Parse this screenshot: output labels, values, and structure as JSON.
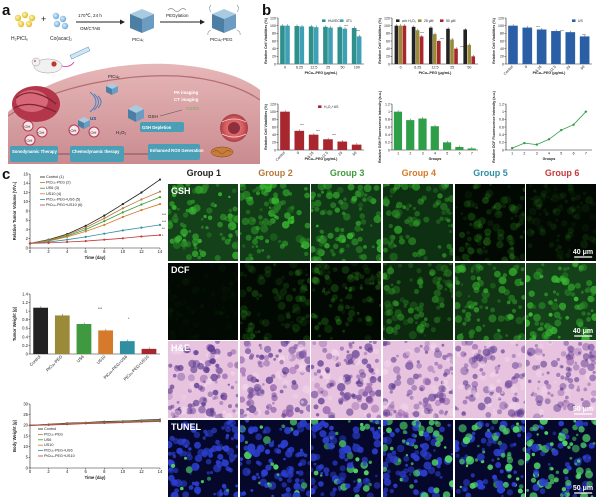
{
  "panels": {
    "a": "a",
    "b": "b",
    "c": "c"
  },
  "schematic": {
    "reagent1": "H₂PtCl₆",
    "reagent2": "Co(acac)₂",
    "condition1": "170℃, 24 h",
    "condition2": "OM/CTAB",
    "product1": "PtCuₓ",
    "pegylation": "PEGylation",
    "product2": "PtCuₓ-PEG",
    "particle_label": "PtCuₓ",
    "us_label": "US",
    "h2o2": "H₂O₂",
    "gsh": "GSH",
    "gssg": "GSSG",
    "oh": "·OH",
    "pa_imaging": "PA imaging",
    "ct_imaging": "CT imaging",
    "gsh_depletion": "GSH Depletion",
    "sono": "Sonodynamic Therapy",
    "chemo": "Chemodynamic therapy",
    "ros": "Enhanced ROS Generation",
    "icon_colors": {
      "tissue": "#d8a6a8",
      "tumor": "#c46a73",
      "box_teal": "#5bb9c0",
      "badge_purple": "#7b5ea8"
    }
  },
  "charts_b": [
    {
      "type": "bar",
      "ylabel": "Relative Cell Viabilities (%)",
      "xlabel": "PtCuₓ-PEG (μg/mL)",
      "categories": [
        "0",
        "6.25",
        "12.5",
        "25",
        "50",
        "100"
      ],
      "legend": [
        "HUVEC",
        "4T1"
      ],
      "series": [
        {
          "name": "HUVEC",
          "color": "#2f8f8a",
          "values": [
            100,
            99,
            98,
            97,
            96,
            94
          ]
        },
        {
          "name": "4T1",
          "color": "#3ea0b5",
          "values": [
            100,
            98,
            96,
            95,
            92,
            72
          ]
        }
      ],
      "ylim": [
        0,
        120
      ],
      "yticks": [
        0,
        20,
        40,
        60,
        80,
        100,
        120
      ]
    },
    {
      "type": "bar",
      "ylabel": "Relative Cell Viabilities (%)",
      "xlabel": "PtCuₓ-PEG (μg/mL)",
      "categories": [
        "0",
        "6.25",
        "12.5",
        "25",
        "50"
      ],
      "legend": [
        "w/o H₂O₂",
        "25 μM",
        "50 μM"
      ],
      "series": [
        {
          "name": "w/o H₂O₂",
          "color": "#222222",
          "values": [
            100,
            97,
            95,
            92,
            90
          ]
        },
        {
          "name": "25 μM",
          "color": "#9a8a3a",
          "values": [
            100,
            88,
            78,
            64,
            50
          ]
        },
        {
          "name": "50 μM",
          "color": "#a8262e",
          "values": [
            100,
            72,
            60,
            40,
            20
          ]
        }
      ],
      "ylim": [
        0,
        120
      ],
      "yticks": [
        0,
        20,
        40,
        60,
        80,
        100,
        120
      ]
    },
    {
      "type": "bar",
      "ylabel": "Relative Cell Viabilities (%)",
      "xlabel": "PtCuₓ-PEG (μg/mL)",
      "categories": [
        "Control",
        "0",
        "6.25",
        "12.5",
        "25",
        "50"
      ],
      "legend": [
        "US"
      ],
      "series": [
        {
          "name": "US",
          "color": "#2a5fa6",
          "values": [
            100,
            95,
            90,
            86,
            83,
            72
          ]
        }
      ],
      "ylim": [
        0,
        120
      ],
      "yticks": [
        0,
        20,
        40,
        60,
        80,
        100,
        120
      ]
    },
    {
      "type": "bar",
      "ylabel": "Relative Cell Viabilities (%)",
      "xlabel": "PtCuₓ-PEG (μg/mL)",
      "categories": [
        "Control",
        "0",
        "6.25",
        "12.5",
        "25",
        "50"
      ],
      "legend": [
        "H₂O₂+US"
      ],
      "series": [
        {
          "name": "H₂O₂+US",
          "color": "#a8262e",
          "values": [
            100,
            50,
            40,
            28,
            22,
            14
          ]
        }
      ],
      "ylim": [
        0,
        120
      ],
      "yticks": [
        0,
        20,
        40,
        60,
        80,
        100,
        120
      ]
    },
    {
      "type": "bar",
      "ylabel": "Relative GSH Fluorescence Intensity (a.u.)",
      "xlabel": "Groups",
      "categories": [
        "1",
        "2",
        "3",
        "4",
        "5",
        "6",
        "7"
      ],
      "series": [
        {
          "name": "",
          "color": "#2f9e48",
          "values": [
            1.0,
            0.78,
            0.82,
            0.62,
            0.2,
            0.08,
            0.04
          ]
        }
      ],
      "ylim": [
        0,
        1.2
      ],
      "yticks": [
        0.0,
        0.2,
        0.4,
        0.6,
        0.8,
        1.0,
        1.2
      ]
    },
    {
      "type": "line",
      "ylabel": "Relative DCF Fluorescence Intensity (a.u.)",
      "xlabel": "Groups",
      "categories": [
        "1",
        "2",
        "3",
        "4",
        "5",
        "6",
        "7"
      ],
      "series": [
        {
          "name": "",
          "color": "#2f9e48",
          "values": [
            0.05,
            0.18,
            0.14,
            0.28,
            0.52,
            0.66,
            1.0
          ]
        }
      ],
      "ylim": [
        0,
        1.2
      ],
      "yticks": [
        0.0,
        0.2,
        0.4,
        0.6,
        0.8,
        1.0,
        1.2
      ]
    }
  ],
  "charts_c": [
    {
      "type": "line",
      "ylabel": "Relative Tumor Volume (V/V₀)",
      "xlabel": "Time (day)",
      "x": [
        0,
        2,
        4,
        6,
        8,
        10,
        12,
        14
      ],
      "xticks": [
        0,
        2,
        4,
        6,
        8,
        10,
        12,
        14
      ],
      "ylim": [
        0,
        16
      ],
      "yticks": [
        0,
        2,
        4,
        6,
        8,
        10,
        12,
        14,
        16
      ],
      "legend_title": "",
      "series": [
        {
          "name": "Control (1)",
          "color": "#222222",
          "values": [
            1,
            1.8,
            3,
            4.8,
            7,
            9.5,
            12,
            14.8
          ]
        },
        {
          "name": "PtCuₓ-PEG (2)",
          "color": "#b5793a",
          "values": [
            1,
            1.7,
            2.8,
            4.4,
            6.4,
            8.6,
            10.5,
            12.2
          ]
        },
        {
          "name": "US6 (3)",
          "color": "#3f9a3f",
          "values": [
            1,
            1.6,
            2.6,
            4,
            5.8,
            7.7,
            9.4,
            11
          ]
        },
        {
          "name": "US10 (4)",
          "color": "#d47a2a",
          "values": [
            1,
            1.5,
            2.4,
            3.6,
            5,
            6.7,
            8.2,
            9.5
          ]
        },
        {
          "name": "PtCuₓ-PEG+US6 (5)",
          "color": "#2f8fa0",
          "values": [
            1,
            1.3,
            1.8,
            2.4,
            3.1,
            3.8,
            4.4,
            5
          ]
        },
        {
          "name": "PtCuₓ-PEG+US10 (6)",
          "color": "#c33a3a",
          "values": [
            1,
            1.1,
            1.3,
            1.5,
            1.8,
            2.1,
            2.5,
            2.8
          ]
        }
      ]
    },
    {
      "type": "bar",
      "ylabel": "Tumor Weight (g)",
      "categories": [
        "Control",
        "PtCuₓ-PEG",
        "US6",
        "US10",
        "PtCuₓ-PEG+US6",
        "PtCuₓ-PEG+US10"
      ],
      "ylim": [
        0,
        1.4
      ],
      "yticks": [
        0.0,
        0.2,
        0.4,
        0.6,
        0.8,
        1.0,
        1.2,
        1.4
      ],
      "series": [
        {
          "name": "",
          "colors": [
            "#222222",
            "#9a8a3a",
            "#3f9a3f",
            "#d47a2a",
            "#2f8fa0",
            "#a8262e"
          ],
          "values": [
            1.08,
            0.9,
            0.7,
            0.55,
            0.3,
            0.12
          ]
        }
      ]
    },
    {
      "type": "line",
      "ylabel": "Body Weight (g)",
      "xlabel": "Time (day)",
      "x": [
        0,
        2,
        4,
        6,
        8,
        10,
        12,
        14
      ],
      "xticks": [
        0,
        2,
        4,
        6,
        8,
        10,
        12,
        14
      ],
      "ylim": [
        0,
        30
      ],
      "yticks": [
        0,
        5,
        10,
        15,
        20,
        25,
        30
      ],
      "series": [
        {
          "name": "Control",
          "color": "#222222",
          "values": [
            20,
            20.5,
            21,
            21.3,
            21.8,
            22,
            22.4,
            22.8
          ]
        },
        {
          "name": "PtCuₓ-PEG",
          "color": "#b5793a",
          "values": [
            20,
            20.3,
            20.8,
            21.2,
            21.5,
            21.9,
            22.2,
            22.5
          ]
        },
        {
          "name": "US6",
          "color": "#3f9a3f",
          "values": [
            20,
            20.2,
            20.6,
            21,
            21.4,
            21.7,
            22,
            22.3
          ]
        },
        {
          "name": "US10",
          "color": "#d47a2a",
          "values": [
            20,
            20.4,
            20.7,
            21.1,
            21.3,
            21.6,
            21.9,
            22.1
          ]
        },
        {
          "name": "PtCuₓ-PEG+US6",
          "color": "#2f8fa0",
          "values": [
            20,
            20.1,
            20.5,
            20.9,
            21.2,
            21.5,
            21.8,
            22
          ]
        },
        {
          "name": "PtCuₓ-PEG+US10",
          "color": "#c33a3a",
          "values": [
            20,
            20.2,
            20.4,
            20.8,
            21,
            21.3,
            21.6,
            21.8
          ]
        }
      ]
    }
  ],
  "micrographs": {
    "groups": [
      {
        "label": "Group 1",
        "color": "#222222"
      },
      {
        "label": "Group 2",
        "color": "#b5793a"
      },
      {
        "label": "Group 3",
        "color": "#3f9a3f"
      },
      {
        "label": "Group 4",
        "color": "#d47a2a"
      },
      {
        "label": "Group 5",
        "color": "#2f8fa0"
      },
      {
        "label": "Group 6",
        "color": "#c33a3a"
      }
    ],
    "rows": [
      {
        "label": "GSH",
        "scale": "40 μm",
        "brightness": [
          0.95,
          0.85,
          0.8,
          0.65,
          0.3,
          0.15
        ],
        "kind": "green"
      },
      {
        "label": "DCF",
        "scale": "40 μm",
        "brightness": [
          0.05,
          0.25,
          0.35,
          0.55,
          0.75,
          0.95
        ],
        "kind": "green"
      },
      {
        "label": "H&E",
        "scale": "50 μm",
        "brightness": [
          0.9,
          0.85,
          0.8,
          0.7,
          0.6,
          0.5
        ],
        "kind": "he"
      },
      {
        "label": "TUNEL",
        "scale": "50 μm",
        "brightness": [
          0.1,
          0.2,
          0.3,
          0.45,
          0.6,
          0.75
        ],
        "kind": "tunel"
      }
    ]
  }
}
